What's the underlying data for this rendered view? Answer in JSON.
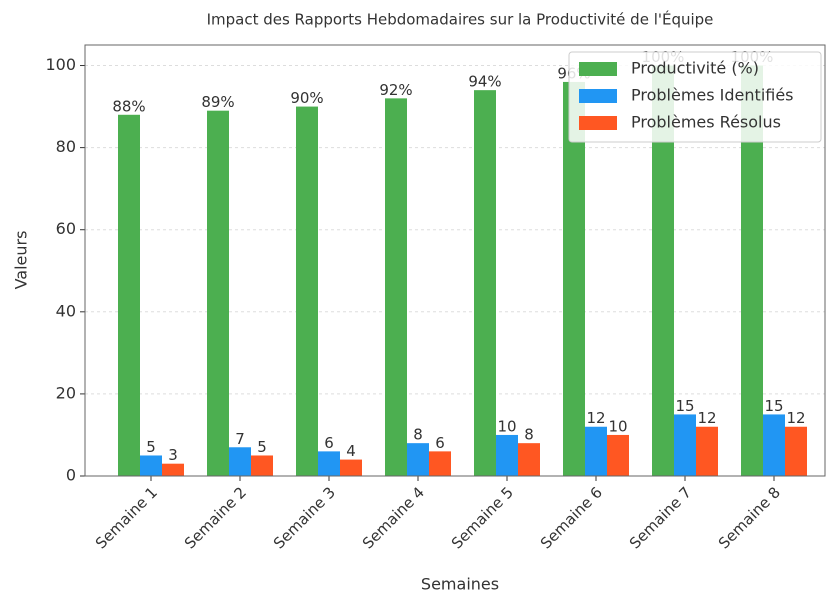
{
  "chart_data": {
    "type": "bar",
    "title": "Impact des Rapports Hebdomadaires sur la Productivité de l'Équipe",
    "xlabel": "Semaines",
    "ylabel": "Valeurs",
    "categories": [
      "Semaine 1",
      "Semaine 2",
      "Semaine 3",
      "Semaine 4",
      "Semaine 5",
      "Semaine 6",
      "Semaine 7",
      "Semaine 8"
    ],
    "series": [
      {
        "name": "Productivité (%)",
        "color": "#4caf50",
        "values": [
          88,
          89,
          90,
          92,
          94,
          96,
          100,
          100
        ],
        "value_labels": [
          "88%",
          "89%",
          "90%",
          "92%",
          "94%",
          "96%",
          "100%",
          "100%"
        ]
      },
      {
        "name": "Problèmes Identifiés",
        "color": "#2196f3",
        "values": [
          5,
          7,
          6,
          8,
          10,
          12,
          15,
          15
        ]
      },
      {
        "name": "Problèmes Résolus",
        "color": "#ff5722",
        "values": [
          3,
          5,
          4,
          6,
          8,
          10,
          12,
          12
        ]
      }
    ],
    "ylim": [
      0,
      105
    ],
    "yticks": [
      0,
      20,
      40,
      60,
      80,
      100
    ],
    "grid": true,
    "legend": "upper right"
  }
}
